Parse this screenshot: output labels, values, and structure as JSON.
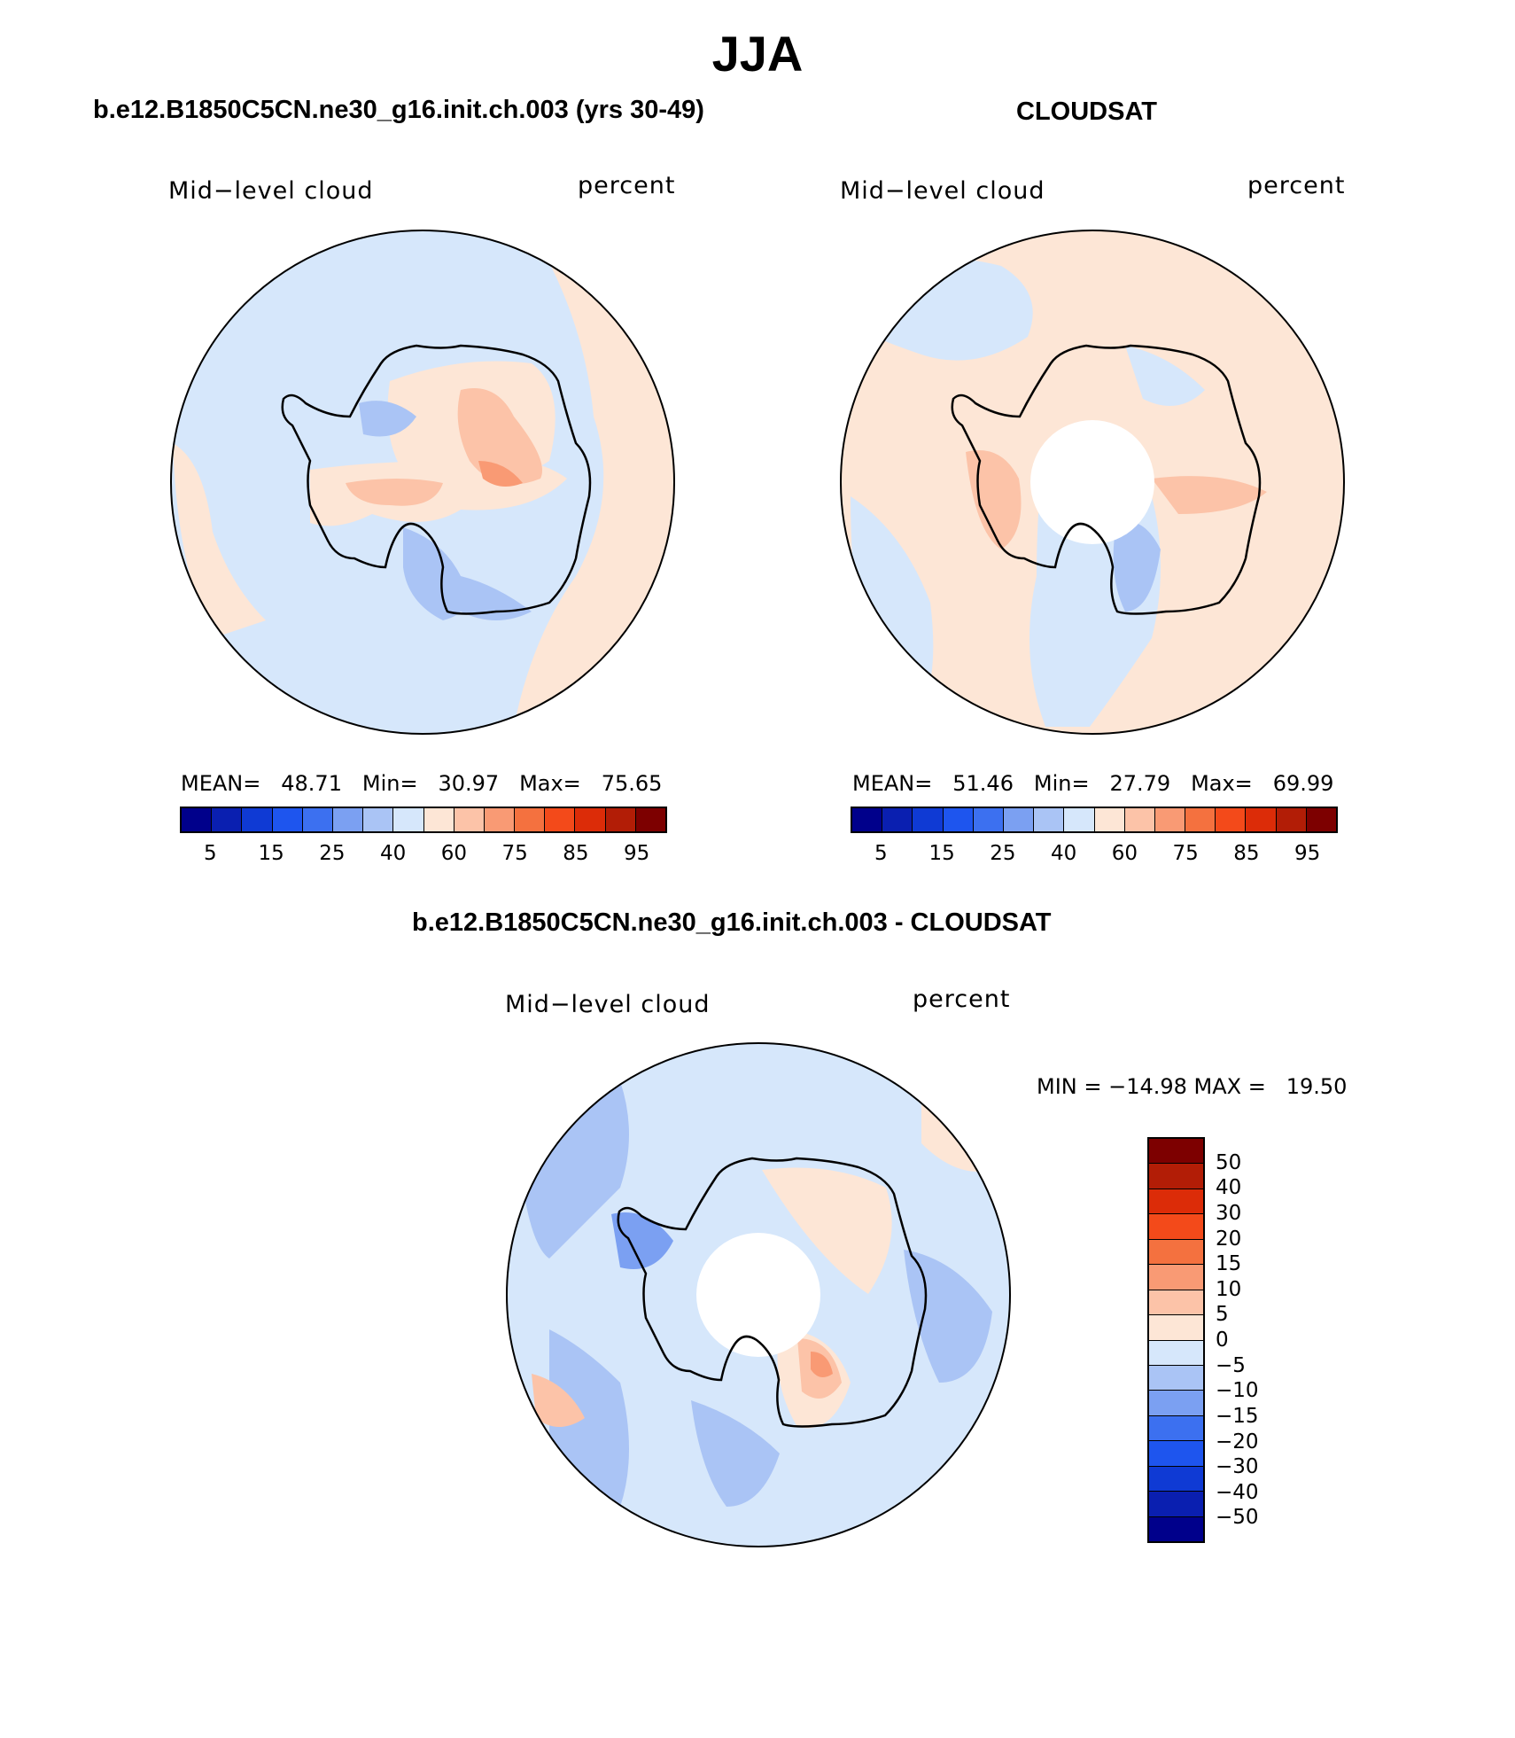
{
  "figure": {
    "title": "JJA",
    "top_left_title": "b.e12.B1850C5CN.ne30_g16.init.ch.003 (yrs 30-49)",
    "top_right_title": "CLOUDSAT",
    "bottom_title": "b.e12.B1850C5CN.ne30_g16.init.ch.003 - CLOUDSAT"
  },
  "panels": {
    "model": {
      "variable": "Mid−level cloud",
      "units": "percent",
      "mean_label": "MEAN=",
      "mean": "48.71",
      "min_label": "Min=",
      "min": "30.97",
      "max_label": "Max=",
      "max": "75.65"
    },
    "obs": {
      "variable": "Mid−level cloud",
      "units": "percent",
      "mean_label": "MEAN=",
      "mean": "51.46",
      "min_label": "Min=",
      "min": "27.79",
      "max_label": "Max=",
      "max": "69.99"
    },
    "diff": {
      "variable": "Mid−level cloud",
      "units": "percent",
      "minmax_text": "MIN = −14.98 MAX =   19.50"
    }
  },
  "colorbar_abs": {
    "colors": [
      "#00008b",
      "#0a1fb0",
      "#0f3ad4",
      "#1e55ee",
      "#3c70f0",
      "#7ba0f2",
      "#aac4f5",
      "#d6e7fb",
      "#fde6d6",
      "#fcc3a8",
      "#f99a74",
      "#f4713f",
      "#f34a1a",
      "#dc2c08",
      "#b21d06",
      "#7d0000"
    ],
    "tick_labels": [
      "5",
      "15",
      "25",
      "40",
      "60",
      "75",
      "85",
      "95"
    ]
  },
  "colorbar_diff": {
    "colors": [
      "#7d0000",
      "#b21d06",
      "#dc2c08",
      "#f34a1a",
      "#f4713f",
      "#f99a74",
      "#fcc3a8",
      "#fde6d6",
      "#d6e7fb",
      "#aac4f5",
      "#7ba0f2",
      "#3c70f0",
      "#1e55ee",
      "#0f3ad4",
      "#0a1fb0",
      "#00008b"
    ],
    "tick_labels": [
      "50",
      "40",
      "30",
      "20",
      "15",
      "10",
      "5",
      "0",
      "−5",
      "−10",
      "−15",
      "−20",
      "−30",
      "−40",
      "−50"
    ]
  },
  "map_colors": {
    "light_blue": "#d6e7fb",
    "blue": "#aac4f5",
    "mid_blue": "#7ba0f2",
    "peach": "#fde6d6",
    "salmon": "#fcc3a8",
    "orange": "#f99a74"
  }
}
